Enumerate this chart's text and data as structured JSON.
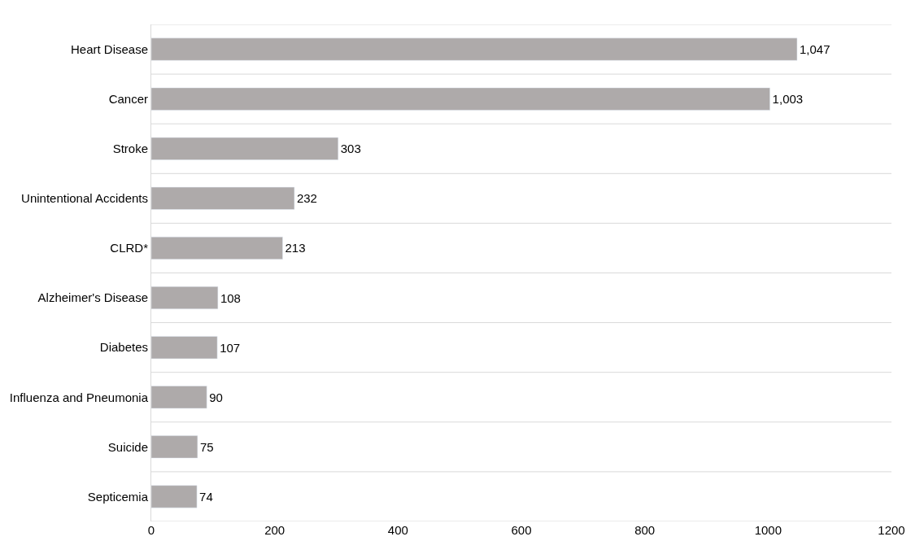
{
  "chart_data": {
    "type": "bar",
    "orientation": "horizontal",
    "categories": [
      "Heart Disease",
      "Cancer",
      "Stroke",
      "Unintentional Accidents",
      "CLRD*",
      "Alzheimer's Disease",
      "Diabetes",
      "Influenza and Pneumonia",
      "Suicide",
      "Septicemia"
    ],
    "values": [
      1047,
      1003,
      303,
      232,
      213,
      108,
      107,
      90,
      75,
      74
    ],
    "value_labels": [
      "1,047",
      "1,003",
      "303",
      "232",
      "213",
      "108",
      "107",
      "90",
      "75",
      "74"
    ],
    "color": "#aeaaaa",
    "xlim": [
      0,
      1200
    ],
    "xticks": [
      0,
      200,
      400,
      600,
      800,
      1000,
      1200
    ],
    "grid": "y"
  }
}
